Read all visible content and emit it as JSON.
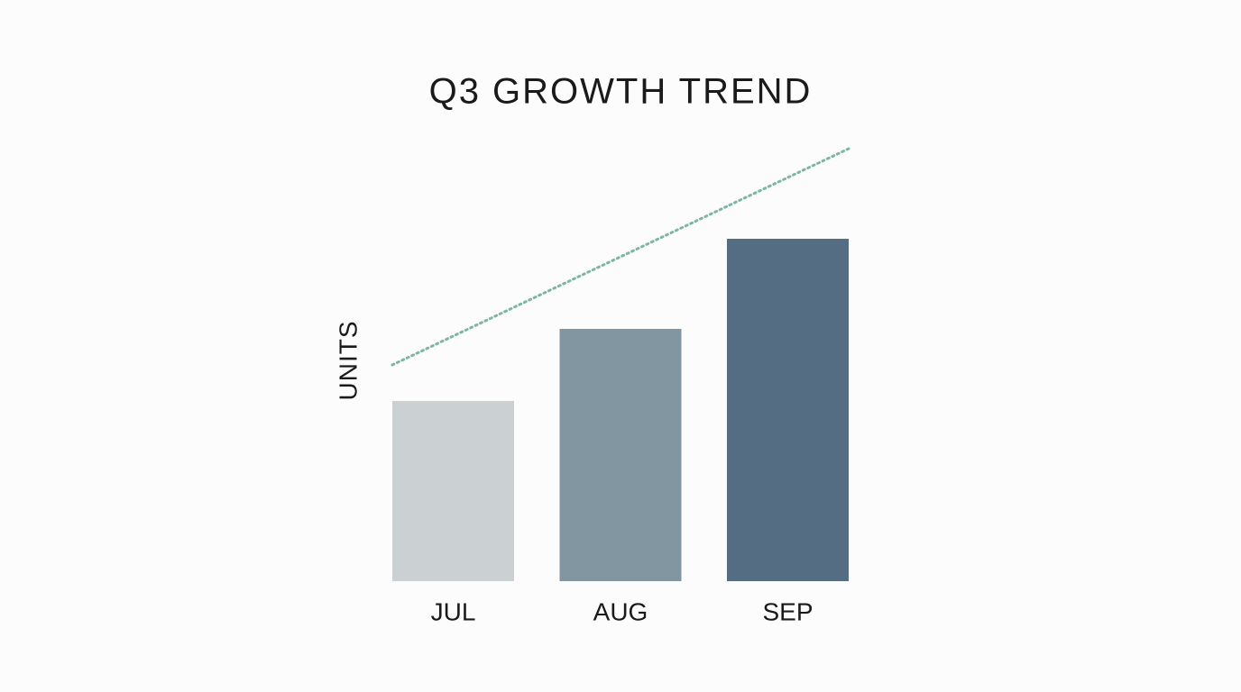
{
  "chart_data": {
    "type": "bar",
    "title": "Q3 GROWTH TREND",
    "y_label": "UNITS",
    "categories": [
      "JUL",
      "AUG",
      "SEP"
    ],
    "values": [
      200,
      280,
      380
    ],
    "colors": [
      "#cbd0d3",
      "#8196a0",
      "#546d82"
    ],
    "trend_line": {
      "values": [
        240,
        480
      ],
      "color": "#7fb5a3",
      "style": "dotted"
    },
    "ylim": [
      0,
      500
    ]
  }
}
